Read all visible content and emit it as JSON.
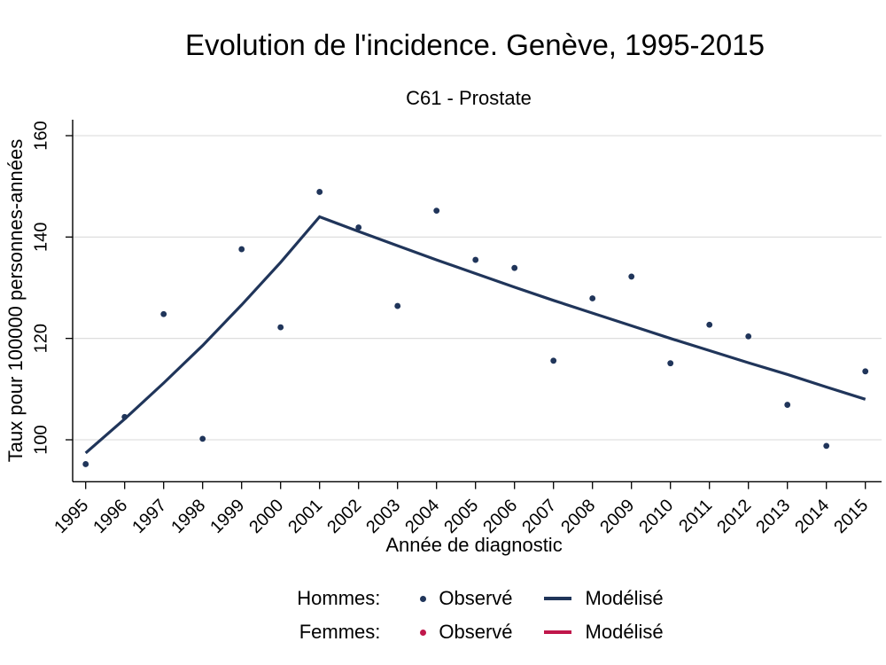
{
  "chart_data": {
    "type": "scatter",
    "title": "Evolution de l'incidence. Genève, 1995-2015",
    "subtitle": "C61 - Prostate",
    "xlabel": "Année de diagnostic",
    "ylabel": "Taux pour 100000 personnes-années",
    "x_years": [
      1995,
      1996,
      1997,
      1998,
      1999,
      2000,
      2001,
      2002,
      2003,
      2004,
      2005,
      2006,
      2007,
      2008,
      2009,
      2010,
      2011,
      2012,
      2013,
      2014,
      2015
    ],
    "y_ticks": [
      100,
      120,
      140,
      160
    ],
    "ylim": [
      92,
      163
    ],
    "grid": true,
    "legend_position": "bottom",
    "series": [
      {
        "name": "Hommes Observé",
        "kind": "scatter",
        "color": "#20355a",
        "values": [
          95.2,
          104.5,
          124.8,
          100.2,
          137.6,
          122.2,
          148.9,
          141.9,
          126.4,
          145.2,
          135.5,
          133.9,
          115.6,
          127.9,
          132.2,
          115.1,
          122.7,
          120.4,
          106.9,
          98.8,
          113.5
        ]
      },
      {
        "name": "Hommes Modélisé",
        "kind": "line",
        "color": "#20355a",
        "values": [
          97.4,
          104.1,
          111.2,
          118.6,
          126.6,
          135.0,
          144.0,
          141.1,
          138.3,
          135.5,
          132.8,
          130.1,
          127.5,
          125.0,
          122.5,
          120.0,
          117.6,
          115.2,
          112.9,
          110.4,
          108.0
        ]
      },
      {
        "name": "Femmes Observé",
        "kind": "scatter",
        "color": "#c0174b",
        "values": []
      },
      {
        "name": "Femmes Modélisé",
        "kind": "line",
        "color": "#c0174b",
        "values": []
      }
    ],
    "legend": {
      "rows": [
        {
          "label": "Hommes:",
          "observe": "Observé",
          "model": "Modélisé",
          "color": "#20355a"
        },
        {
          "label": "Femmes:",
          "observe": "Observé",
          "model": "Modélisé",
          "color": "#c0174b"
        }
      ]
    }
  },
  "colors": {
    "navy": "#20355a",
    "red": "#c0174b",
    "grid": "#d9d9d9",
    "axis": "#000000",
    "background": "#ffffff"
  }
}
